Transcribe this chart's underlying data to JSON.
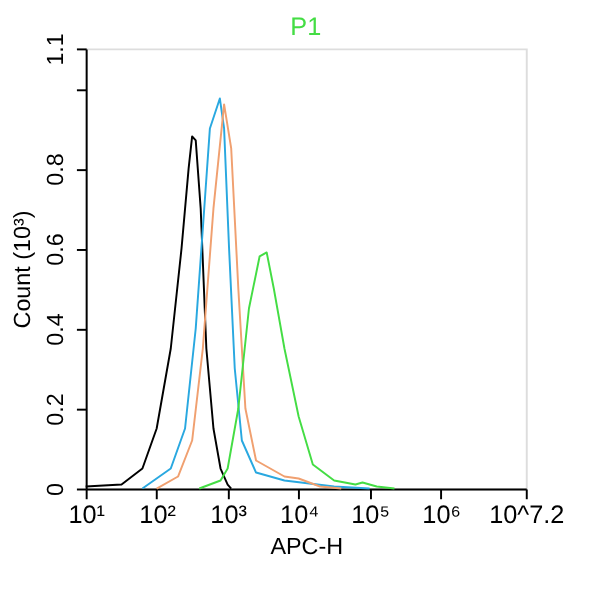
{
  "chart_data": {
    "type": "line",
    "xlabel": "APC-H",
    "ylabel": "Count (10³)",
    "log": "x",
    "grid": false,
    "marker": "none",
    "line_style": "solid",
    "xlim": [
      10,
      15848932
    ],
    "ylim": [
      0,
      1.1
    ],
    "xticks": [
      {
        "value": 10,
        "label": "10¹"
      },
      {
        "value": 100,
        "label": "10²"
      },
      {
        "value": 1000,
        "label": "10³"
      },
      {
        "value": 10000,
        "label": "10⁴"
      },
      {
        "value": 100000,
        "label": "10⁵"
      },
      {
        "value": 1000000,
        "label": "10⁶"
      },
      {
        "value": 15848932,
        "label": "10^7.2"
      }
    ],
    "yticks": [
      0,
      0.2,
      0.4,
      0.6,
      0.8,
      {
        "value": 1,
        "label": null
      },
      1.1
    ],
    "series": [
      {
        "color": "#000000",
        "x": [
          10,
          32,
          63,
          100,
          158,
          224,
          282,
          316,
          355,
          417,
          501,
          631,
          794,
          1000,
          1122
        ],
        "values": [
          0.005,
          0.01,
          0.05,
          0.15,
          0.35,
          0.6,
          0.8,
          0.88,
          0.87,
          0.7,
          0.35,
          0.15,
          0.05,
          0.01,
          0
        ]
      },
      {
        "color": "#29a8e0",
        "x": [
          63,
          158,
          251,
          355,
          447,
          562,
          776,
          891,
          1047,
          1259,
          1585,
          2512,
          6310,
          31623,
          100000
        ],
        "values": [
          0,
          0.05,
          0.15,
          0.4,
          0.65,
          0.9,
          0.975,
          0.9,
          0.6,
          0.3,
          0.12,
          0.04,
          0.02,
          0.005,
          0
        ]
      },
      {
        "color": "#f0a070",
        "x": [
          100,
          200,
          316,
          447,
          631,
          891,
          1122,
          1413,
          1778,
          2512,
          6310,
          10000,
          19953,
          39811
        ],
        "values": [
          0,
          0.03,
          0.12,
          0.35,
          0.7,
          0.96,
          0.85,
          0.5,
          0.2,
          0.07,
          0.03,
          0.025,
          0.005,
          0
        ]
      },
      {
        "name": "P1",
        "color": "#44dd44",
        "x": [
          398,
          794,
          1000,
          1413,
          1995,
          2818,
          3548,
          4467,
          6310,
          10000,
          15849,
          31623,
          63096,
          79433,
          125893,
          223872
        ],
        "values": [
          0,
          0.02,
          0.05,
          0.2,
          0.45,
          0.58,
          0.59,
          0.5,
          0.35,
          0.18,
          0.06,
          0.02,
          0.01,
          0.015,
          0.005,
          0
        ]
      }
    ]
  }
}
